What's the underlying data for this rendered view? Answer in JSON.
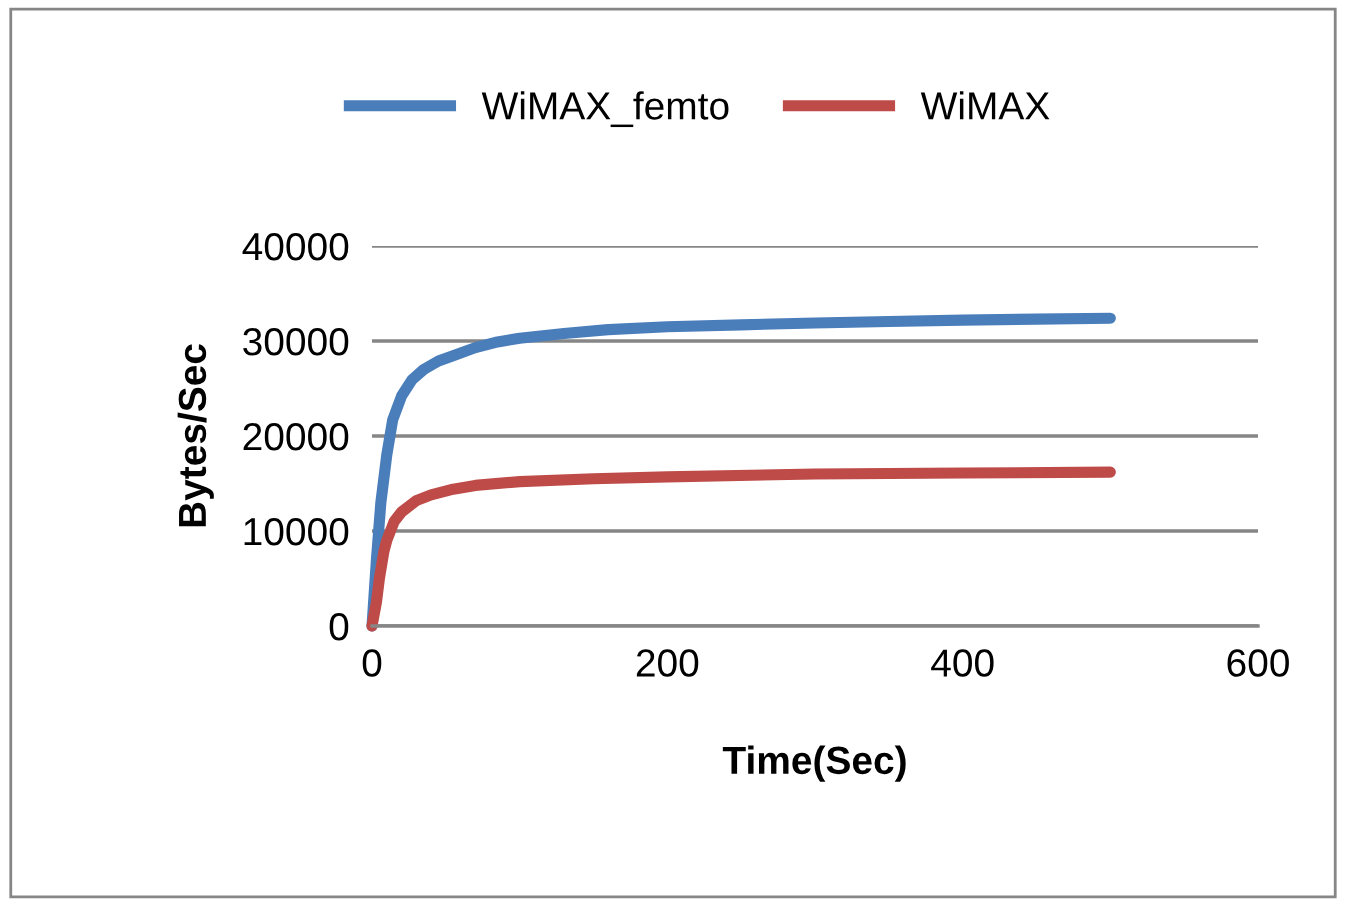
{
  "chart_data": {
    "type": "line",
    "xlabel": "Time(Sec)",
    "ylabel": "Bytes/Sec",
    "xlim": [
      0,
      600
    ],
    "xticks": [
      0,
      200,
      400,
      600
    ],
    "ylim": [
      0,
      40000
    ],
    "yticks": [
      0,
      10000,
      20000,
      30000,
      40000
    ],
    "grid": "y",
    "legend": "top",
    "marker": "none",
    "series": [
      {
        "name": "WiMAX_femto",
        "color": "#4a7ebb",
        "x": [
          0,
          3,
          6,
          10,
          14,
          20,
          27,
          35,
          45,
          54,
          70,
          85,
          100,
          130,
          160,
          200,
          250,
          300,
          350,
          400,
          450,
          500
        ],
        "values": [
          0,
          7000,
          13000,
          18000,
          21700,
          24200,
          25900,
          27000,
          27900,
          28400,
          29300,
          29900,
          30300,
          30800,
          31200,
          31500,
          31700,
          31900,
          32050,
          32200,
          32300,
          32400
        ]
      },
      {
        "name": "WiMAX",
        "color": "#be4b48",
        "x": [
          0,
          3,
          5,
          8,
          10,
          15,
          20,
          30,
          40,
          55,
          70,
          100,
          150,
          200,
          300,
          400,
          500
        ],
        "values": [
          0,
          2500,
          5000,
          7800,
          9000,
          11000,
          12000,
          13200,
          13800,
          14400,
          14800,
          15200,
          15500,
          15700,
          16000,
          16100,
          16200
        ]
      }
    ]
  }
}
